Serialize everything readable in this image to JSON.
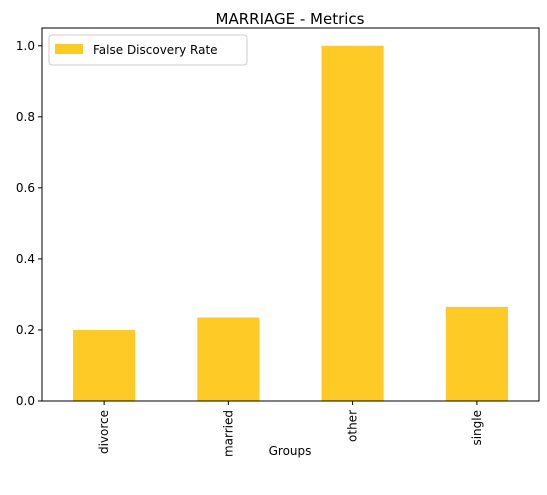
{
  "chart_data": {
    "type": "bar",
    "title": "MARRIAGE - Metrics",
    "xlabel": "Groups",
    "ylabel": "",
    "categories": [
      "divorce",
      "married",
      "other",
      "single"
    ],
    "series": [
      {
        "name": "False Discovery Rate",
        "values": [
          0.2,
          0.235,
          1.0,
          0.265
        ],
        "color": "#fdca26"
      }
    ],
    "ylim": [
      0,
      1.05
    ],
    "yticks": [
      "0.0",
      "0.2",
      "0.4",
      "0.6",
      "0.8",
      "1.0"
    ],
    "grid": false,
    "legend": "top-left"
  }
}
